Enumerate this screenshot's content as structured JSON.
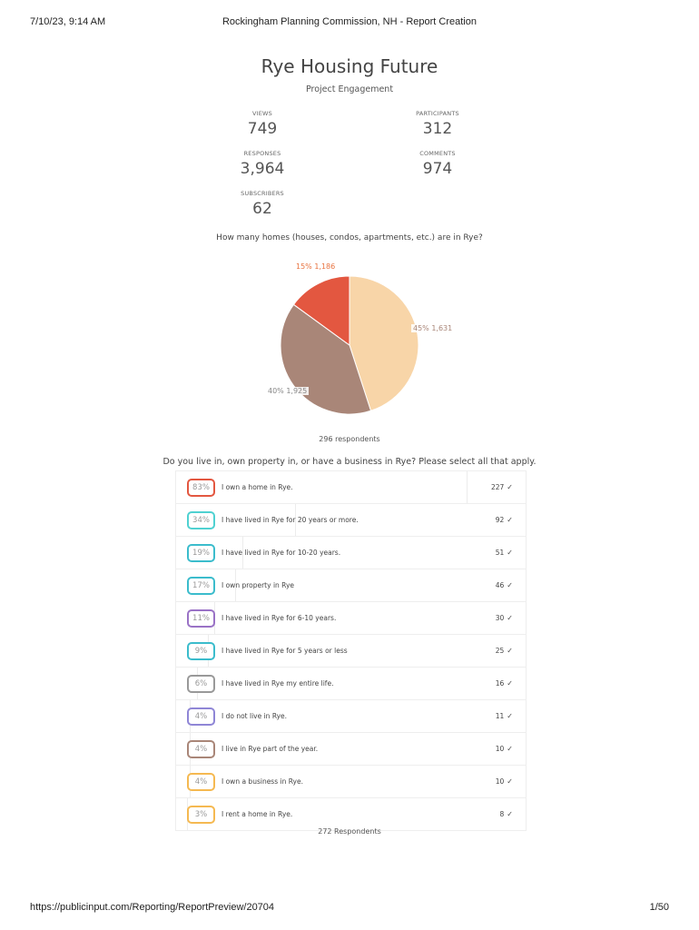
{
  "print_header": {
    "date": "7/10/23, 9:14 AM",
    "title": "Rockingham Planning Commission, NH - Report Creation"
  },
  "print_footer": {
    "url": "https://publicinput.com/Reporting/ReportPreview/20704",
    "page": "1/50"
  },
  "report": {
    "title": "Rye Housing Future",
    "subtitle": "Project Engagement"
  },
  "stats": {
    "views": {
      "label": "VIEWS",
      "value": "749"
    },
    "participants": {
      "label": "PARTICIPANTS",
      "value": "312"
    },
    "responses": {
      "label": "RESPONSES",
      "value": "3,964"
    },
    "comments": {
      "label": "COMMENTS",
      "value": "974"
    },
    "subscribers": {
      "label": "SUBSCRIBERS",
      "value": "62"
    }
  },
  "question1": {
    "text": "How many homes (houses, condos, apartments, etc.) are in Rye?",
    "respondents": "296 respondents",
    "slices": [
      {
        "label": "45% 1,631",
        "percent": 45,
        "color": "#f8d5a8"
      },
      {
        "label": "40% 1,925",
        "percent": 40,
        "color": "#a98678"
      },
      {
        "label": "15% 1,186",
        "percent": 15,
        "color": "#e35740"
      }
    ]
  },
  "question2": {
    "text": "Do you live in, own property in, or have a business in Rye? Please select all that apply.",
    "respondents": "272 Respondents",
    "check": "✓",
    "options": [
      {
        "pct": "83%",
        "w": 83,
        "label": "I own a home in Rye.",
        "count": "227",
        "color": "#e35740"
      },
      {
        "pct": "34%",
        "w": 34,
        "label": "I have lived in Rye for 20 years or more.",
        "count": "92",
        "color": "#4fd1d1"
      },
      {
        "pct": "19%",
        "w": 19,
        "label": "I have lived in Rye for 10-20 years.",
        "count": "51",
        "color": "#3bbccc"
      },
      {
        "pct": "17%",
        "w": 17,
        "label": "I own property in Rye",
        "count": "46",
        "color": "#3bbccc"
      },
      {
        "pct": "11%",
        "w": 11,
        "label": "I have lived in Rye for 6-10 years.",
        "count": "30",
        "color": "#9a72c6"
      },
      {
        "pct": "9%",
        "w": 9,
        "label": "I have lived in Rye for 5 years or less",
        "count": "25",
        "color": "#3bbccc"
      },
      {
        "pct": "6%",
        "w": 6,
        "label": "I have lived in Rye my entire life.",
        "count": "16",
        "color": "#999999"
      },
      {
        "pct": "4%",
        "w": 4,
        "label": "I do not live in Rye.",
        "count": "11",
        "color": "#8f86d6"
      },
      {
        "pct": "4%",
        "w": 4,
        "label": "I live in Rye part of the year.",
        "count": "10",
        "color": "#a98678"
      },
      {
        "pct": "4%",
        "w": 4,
        "label": "I own a business in Rye.",
        "count": "10",
        "color": "#f5b951"
      },
      {
        "pct": "3%",
        "w": 3,
        "label": "I rent a home in Rye.",
        "count": "8",
        "color": "#f5b951"
      }
    ]
  }
}
